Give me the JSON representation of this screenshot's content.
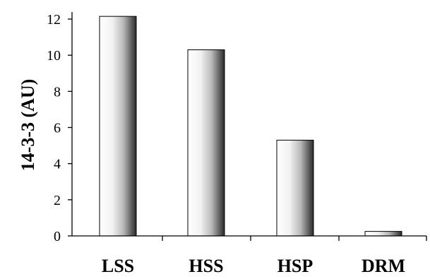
{
  "chart_data": {
    "type": "bar",
    "title": "",
    "xlabel": "",
    "ylabel": "14-3-3 (AU)",
    "categories": [
      "LSS",
      "HSS",
      "HSP",
      "DRM"
    ],
    "values": [
      12.15,
      10.3,
      5.3,
      0.25
    ],
    "ylim": [
      0,
      12
    ],
    "yticks": [
      0,
      2,
      4,
      6,
      8,
      10,
      12
    ],
    "grid": false,
    "legend": "none"
  }
}
